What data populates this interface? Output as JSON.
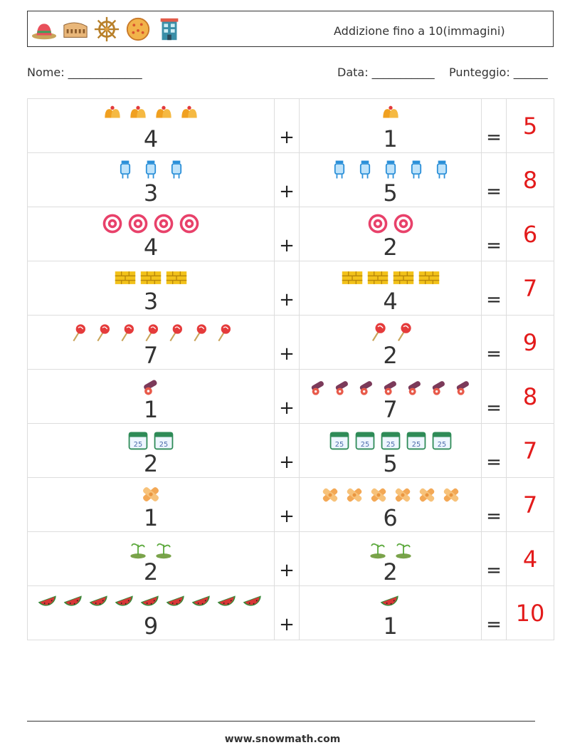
{
  "header": {
    "title": "Addizione fino a 10(immagini)",
    "icons": [
      "sombrero-icon",
      "colosseum-icon",
      "ship-wheel-icon",
      "pizza-icon",
      "building-icon"
    ]
  },
  "meta": {
    "name_label": "Nome: _____________",
    "date_label": "Data: ___________",
    "score_label": "Punteggio: ______"
  },
  "operators": {
    "plus": "+",
    "equals": "="
  },
  "rows": [
    {
      "a": "4",
      "b": "1",
      "result": "5",
      "icon": "bells-icon",
      "color": "#f0a020"
    },
    {
      "a": "3",
      "b": "5",
      "result": "8",
      "icon": "baby-bottle-icon",
      "color": "#2a8fd8"
    },
    {
      "a": "4",
      "b": "2",
      "result": "6",
      "icon": "dartboard-icon",
      "color": "#e8416a"
    },
    {
      "a": "3",
      "b": "4",
      "result": "7",
      "icon": "brick-wall-icon",
      "color": "#f2c21a"
    },
    {
      "a": "7",
      "b": "2",
      "result": "9",
      "icon": "lollipop-icon",
      "color": "#e53b3b"
    },
    {
      "a": "1",
      "b": "7",
      "result": "8",
      "icon": "cannon-icon",
      "color": "#7b3a5a"
    },
    {
      "a": "2",
      "b": "5",
      "result": "7",
      "icon": "calendar-icon",
      "color": "#2e8b57"
    },
    {
      "a": "1",
      "b": "6",
      "result": "7",
      "icon": "bandage-icon",
      "color": "#f3a855"
    },
    {
      "a": "2",
      "b": "2",
      "result": "4",
      "icon": "sprout-icon",
      "color": "#5aa83a"
    },
    {
      "a": "9",
      "b": "1",
      "result": "10",
      "icon": "watermelon-icon",
      "color": "#d93636"
    }
  ],
  "footer": {
    "site": "www.snowmath.com"
  }
}
